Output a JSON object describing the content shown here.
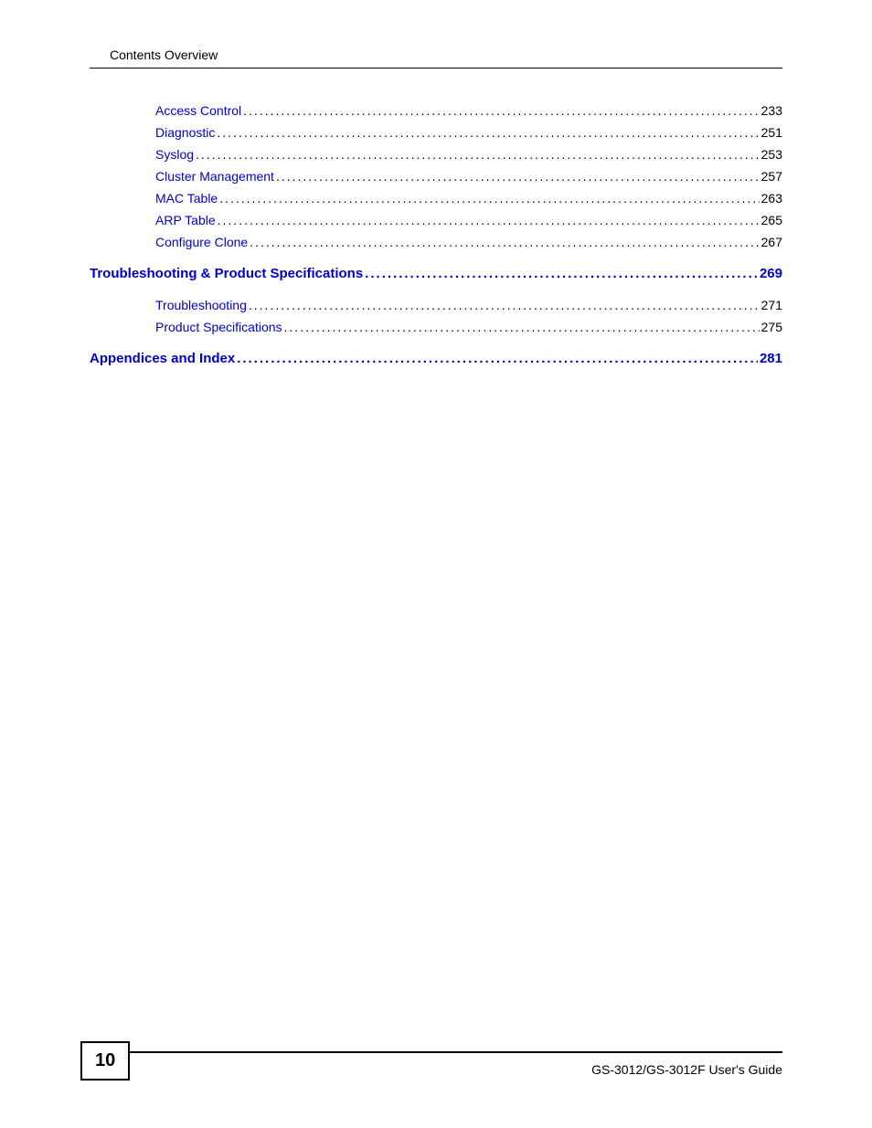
{
  "header": {
    "title": "Contents Overview"
  },
  "link_color": "#0000cc",
  "text_color": "#000000",
  "toc": {
    "items": [
      {
        "label": "Access Control",
        "page": "233",
        "indent": 1,
        "section": false
      },
      {
        "label": "Diagnostic",
        "page": "251",
        "indent": 1,
        "section": false
      },
      {
        "label": "Syslog",
        "page": "253",
        "indent": 1,
        "section": false
      },
      {
        "label": "Cluster Management",
        "page": "257",
        "indent": 1,
        "section": false
      },
      {
        "label": "MAC Table",
        "page": "263",
        "indent": 1,
        "section": false
      },
      {
        "label": "ARP Table",
        "page": "265",
        "indent": 1,
        "section": false
      },
      {
        "label": "Configure Clone",
        "page": "267",
        "indent": 1,
        "section": false
      },
      {
        "label": "Troubleshooting & Product Specifications",
        "page": "269",
        "indent": 0,
        "section": true
      },
      {
        "label": "Troubleshooting",
        "page": "271",
        "indent": 1,
        "section": false
      },
      {
        "label": "Product Specifications",
        "page": "275",
        "indent": 1,
        "section": false
      },
      {
        "label": "Appendices and Index",
        "page": "281",
        "indent": 0,
        "section": true
      }
    ]
  },
  "footer": {
    "page_number": "10",
    "guide_text": "GS-3012/GS-3012F User's Guide"
  }
}
